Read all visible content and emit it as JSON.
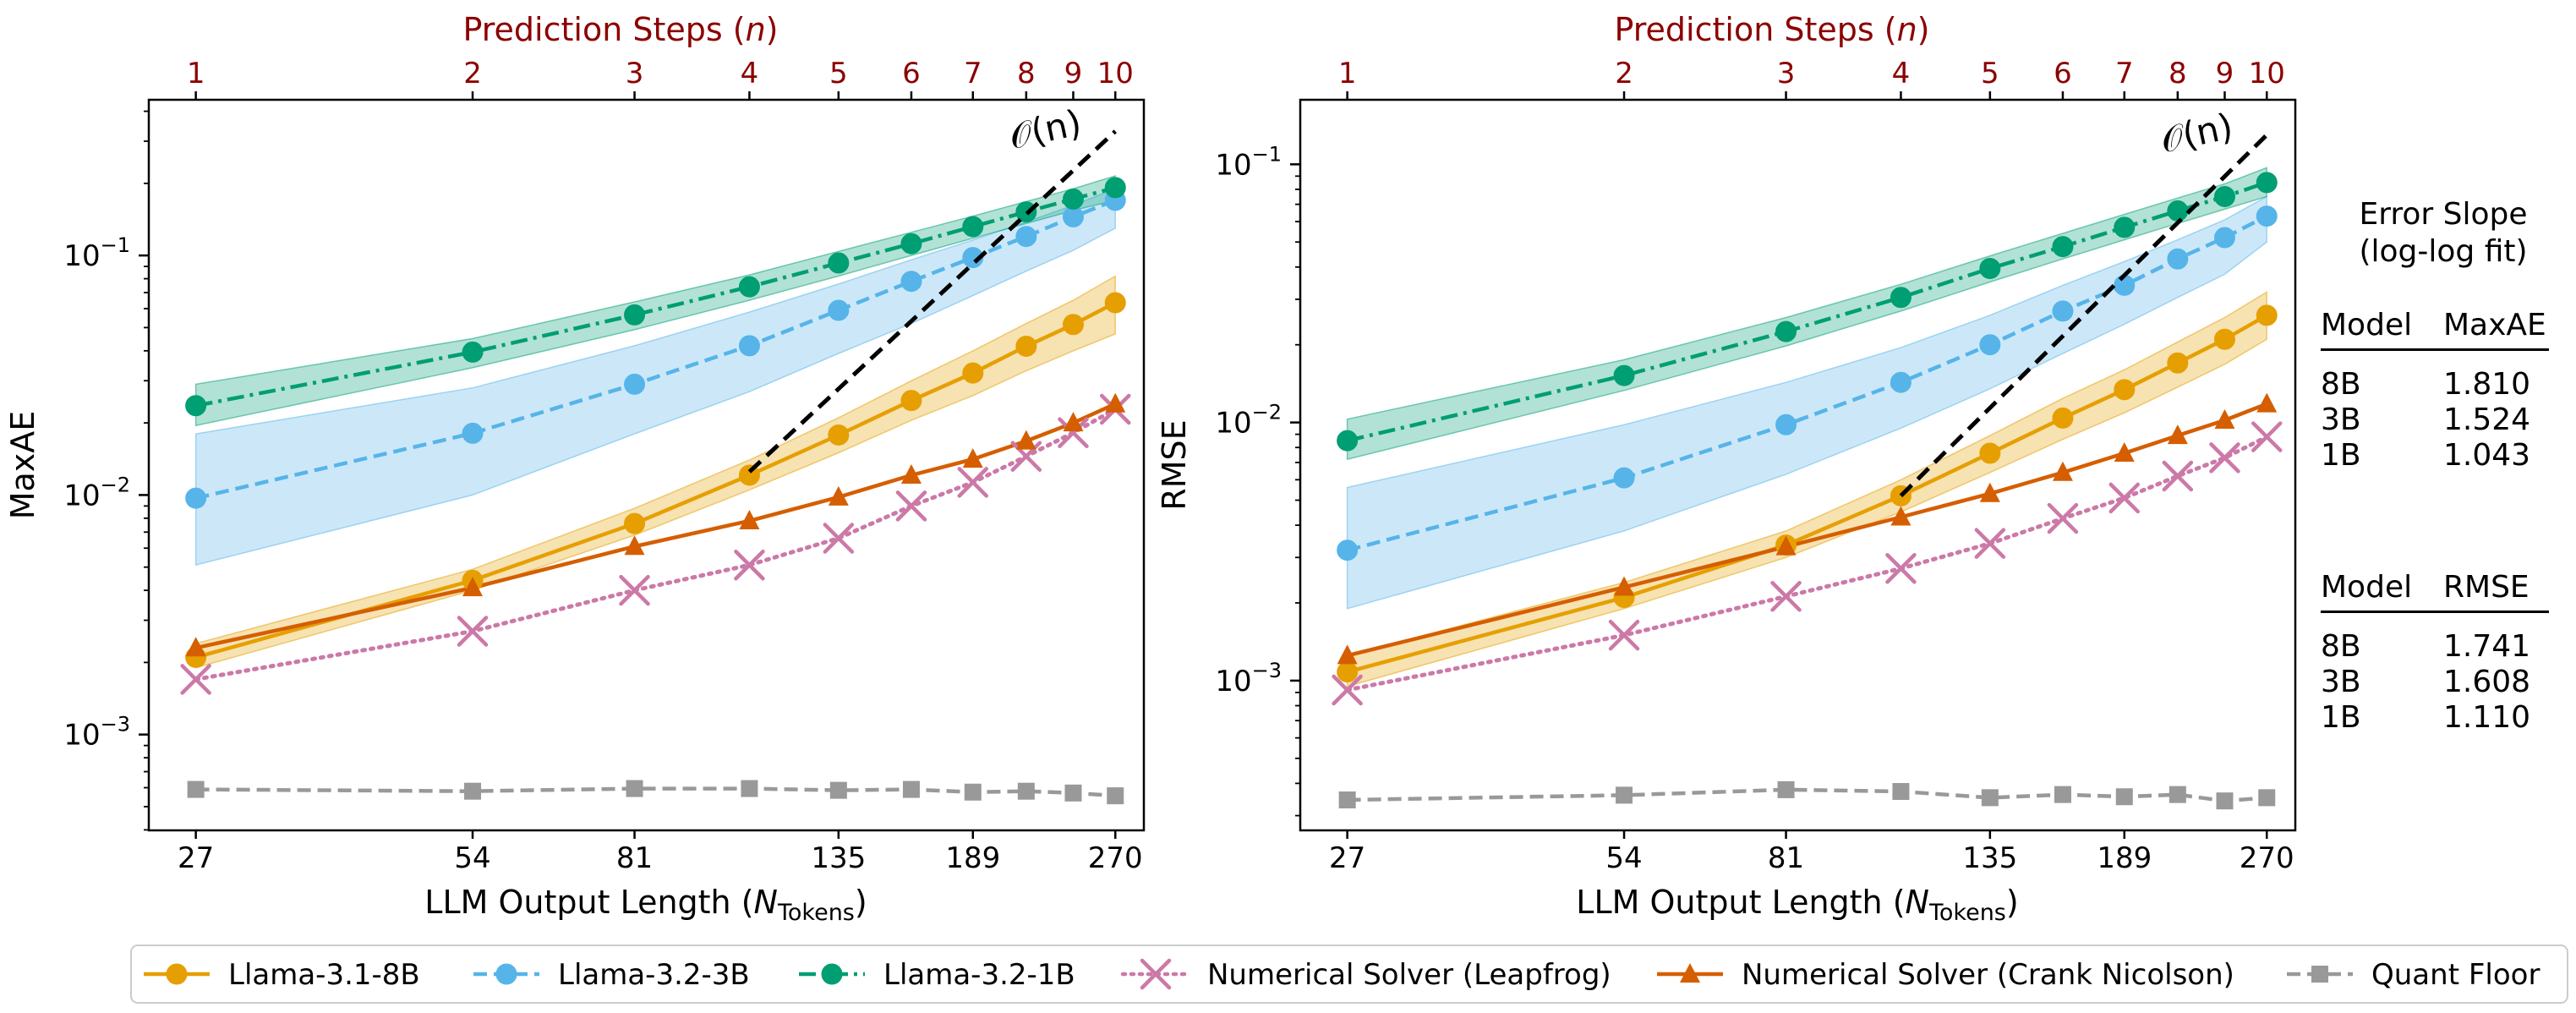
{
  "chart_data": [
    {
      "type": "line",
      "id": "maxae",
      "ylabel": "MaxAE",
      "xlabel": "LLM Output Length (",
      "xlabel_var": "N",
      "xlabel_sub": "Tokens",
      "xlabel_close": ")",
      "top_xlabel": "Prediction Steps (",
      "top_xlabel_var": "n",
      "top_xlabel_close": ")",
      "x_tokens": [
        27,
        54,
        81,
        108,
        135,
        162,
        189,
        216,
        243,
        270
      ],
      "x_ticks": [
        27,
        54,
        81,
        135,
        189,
        270
      ],
      "x_tick_labels": [
        "27",
        "54",
        "81",
        "135",
        "189",
        "270"
      ],
      "top_ticks": [
        1,
        2,
        3,
        4,
        5,
        6,
        7,
        8,
        9,
        10
      ],
      "top_tick_labels": [
        "1",
        "2",
        "3",
        "4",
        "5",
        "6",
        "7",
        "8",
        "9",
        "10"
      ],
      "xlim": [
        24,
        290
      ],
      "ylim_log10": [
        -3.4,
        -0.35
      ],
      "y_ticks_exp": [
        -3,
        -2,
        -1
      ],
      "y_tick_labels": [
        {
          "base": "10",
          "exp": "−3"
        },
        {
          "base": "10",
          "exp": "−2"
        },
        {
          "base": "10",
          "exp": "−1"
        }
      ],
      "ref_line": {
        "label": "𝒪(n)",
        "x": [
          108,
          270
        ],
        "y": [
          0.0125,
          0.33
        ]
      },
      "series": [
        {
          "name": "Llama-3.1-8B",
          "values": [
            0.0021,
            0.0044,
            0.0076,
            0.0121,
            0.0178,
            0.0248,
            0.0323,
            0.0418,
            0.0515,
            0.0635
          ],
          "band_low": [
            0.0019,
            0.004,
            0.0068,
            0.0105,
            0.015,
            0.0205,
            0.026,
            0.033,
            0.04,
            0.047
          ],
          "band_high": [
            0.0024,
            0.0049,
            0.0088,
            0.014,
            0.021,
            0.03,
            0.04,
            0.052,
            0.065,
            0.082
          ]
        },
        {
          "name": "Llama-3.2-3B",
          "values": [
            0.0097,
            0.0181,
            0.029,
            0.042,
            0.059,
            0.078,
            0.098,
            0.12,
            0.145,
            0.17
          ],
          "band_low": [
            0.0051,
            0.01,
            0.018,
            0.027,
            0.039,
            0.052,
            0.068,
            0.086,
            0.105,
            0.13
          ],
          "band_high": [
            0.018,
            0.028,
            0.042,
            0.058,
            0.076,
            0.096,
            0.116,
            0.138,
            0.162,
            0.19
          ]
        },
        {
          "name": "Llama-3.2-1B",
          "values": [
            0.0236,
            0.0395,
            0.0565,
            0.074,
            0.093,
            0.112,
            0.132,
            0.152,
            0.172,
            0.192
          ],
          "band_low": [
            0.0195,
            0.034,
            0.049,
            0.065,
            0.082,
            0.1,
            0.118,
            0.136,
            0.154,
            0.17
          ],
          "band_high": [
            0.029,
            0.045,
            0.064,
            0.083,
            0.104,
            0.125,
            0.146,
            0.168,
            0.19,
            0.215
          ]
        },
        {
          "name": "Numerical Solver (Leapfrog)",
          "values": [
            0.0017,
            0.0027,
            0.004,
            0.0051,
            0.0066,
            0.009,
            0.0113,
            0.0145,
            0.0182,
            0.0228
          ]
        },
        {
          "name": "Numerical Solver (Crank Nicolson)",
          "values": [
            0.0023,
            0.0041,
            0.0061,
            0.0078,
            0.0098,
            0.0121,
            0.0141,
            0.0168,
            0.02,
            0.024
          ]
        },
        {
          "name": "Quant Floor",
          "values": [
            0.00059,
            0.00058,
            0.000595,
            0.000595,
            0.000585,
            0.00059,
            0.000575,
            0.00058,
            0.00057,
            0.000555
          ]
        }
      ]
    },
    {
      "type": "line",
      "id": "rmse",
      "ylabel": "RMSE",
      "xlabel": "LLM Output Length (",
      "xlabel_var": "N",
      "xlabel_sub": "Tokens",
      "xlabel_close": ")",
      "top_xlabel": "Prediction Steps (",
      "top_xlabel_var": "n",
      "top_xlabel_close": ")",
      "x_tokens": [
        27,
        54,
        81,
        108,
        135,
        162,
        189,
        216,
        243,
        270
      ],
      "x_ticks": [
        27,
        54,
        81,
        135,
        189,
        270
      ],
      "x_tick_labels": [
        "27",
        "54",
        "81",
        "135",
        "189",
        "270"
      ],
      "top_ticks": [
        1,
        2,
        3,
        4,
        5,
        6,
        7,
        8,
        9,
        10
      ],
      "top_tick_labels": [
        "1",
        "2",
        "3",
        "4",
        "5",
        "6",
        "7",
        "8",
        "9",
        "10"
      ],
      "xlim": [
        24,
        290
      ],
      "ylim_log10": [
        -3.58,
        -0.75
      ],
      "y_ticks_exp": [
        -3,
        -2,
        -1
      ],
      "y_tick_labels": [
        {
          "base": "10",
          "exp": "−3"
        },
        {
          "base": "10",
          "exp": "−2"
        },
        {
          "base": "10",
          "exp": "−1"
        }
      ],
      "ref_line": {
        "label": "𝒪(n)",
        "x": [
          108,
          270
        ],
        "y": [
          0.0052,
          0.13
        ]
      },
      "series": [
        {
          "name": "Llama-3.1-8B",
          "values": [
            0.00108,
            0.0021,
            0.00335,
            0.0052,
            0.0076,
            0.0104,
            0.0134,
            0.017,
            0.021,
            0.026
          ],
          "band_low": [
            0.00095,
            0.0019,
            0.003,
            0.0045,
            0.0064,
            0.0086,
            0.0109,
            0.0137,
            0.0168,
            0.021
          ],
          "band_high": [
            0.00125,
            0.0024,
            0.0038,
            0.006,
            0.0089,
            0.0124,
            0.016,
            0.0205,
            0.0255,
            0.032
          ]
        },
        {
          "name": "Llama-3.2-3B",
          "values": [
            0.0032,
            0.0061,
            0.0098,
            0.0143,
            0.02,
            0.027,
            0.034,
            0.043,
            0.052,
            0.063
          ],
          "band_low": [
            0.0019,
            0.0038,
            0.0063,
            0.0095,
            0.0135,
            0.0185,
            0.024,
            0.0305,
            0.0375,
            0.05
          ],
          "band_high": [
            0.0056,
            0.0098,
            0.0143,
            0.0195,
            0.026,
            0.034,
            0.042,
            0.051,
            0.061,
            0.075
          ]
        },
        {
          "name": "Llama-3.2-1B",
          "values": [
            0.0085,
            0.0152,
            0.0225,
            0.0305,
            0.0395,
            0.048,
            0.057,
            0.066,
            0.075,
            0.085
          ],
          "band_low": [
            0.0072,
            0.0133,
            0.0198,
            0.027,
            0.035,
            0.043,
            0.051,
            0.059,
            0.067,
            0.075
          ],
          "band_high": [
            0.0103,
            0.0175,
            0.0255,
            0.0343,
            0.0442,
            0.054,
            0.064,
            0.074,
            0.084,
            0.097
          ]
        },
        {
          "name": "Numerical Solver (Leapfrog)",
          "values": [
            0.00092,
            0.0015,
            0.00212,
            0.00272,
            0.0034,
            0.00425,
            0.0051,
            0.0062,
            0.0073,
            0.0088
          ]
        },
        {
          "name": "Numerical Solver (Crank Nicolson)",
          "values": [
            0.00125,
            0.0023,
            0.0033,
            0.0043,
            0.0053,
            0.0064,
            0.0076,
            0.0089,
            0.0102,
            0.0118
          ]
        },
        {
          "name": "Quant Floor",
          "values": [
            0.000345,
            0.00036,
            0.000378,
            0.000372,
            0.000352,
            0.000362,
            0.000355,
            0.000362,
            0.000342,
            0.000352
          ]
        }
      ]
    }
  ],
  "legend": [
    {
      "name": "Llama-3.1-8B",
      "color": "#e69f00",
      "marker": "circle",
      "dash": "solid"
    },
    {
      "name": "Llama-3.2-3B",
      "color": "#56b4e9",
      "marker": "circle",
      "dash": "dashed"
    },
    {
      "name": "Llama-3.2-1B",
      "color": "#009e73",
      "marker": "circle",
      "dash": "dashdot"
    },
    {
      "name": "Numerical Solver (Leapfrog)",
      "color": "#cc79a7",
      "marker": "x",
      "dash": "dotted"
    },
    {
      "name": "Numerical Solver (Crank Nicolson)",
      "color": "#d55e00",
      "marker": "triangle",
      "dash": "solid"
    },
    {
      "name": "Quant Floor",
      "color": "#999999",
      "marker": "square",
      "dash": "dashed"
    }
  ],
  "colors": {
    "top_axis": "#8b0000",
    "ref_line": "#000000"
  },
  "error_slope": {
    "title_line1": "Error Slope",
    "title_line2": "(log-log fit)",
    "tables": [
      {
        "col1": "Model",
        "col2": "MaxAE",
        "rows": [
          {
            "model": "8B",
            "value": "1.810"
          },
          {
            "model": "3B",
            "value": "1.524"
          },
          {
            "model": "1B",
            "value": "1.043"
          }
        ]
      },
      {
        "col1": "Model",
        "col2": "RMSE",
        "rows": [
          {
            "model": "8B",
            "value": "1.741"
          },
          {
            "model": "3B",
            "value": "1.608"
          },
          {
            "model": "1B",
            "value": "1.110"
          }
        ]
      }
    ]
  }
}
